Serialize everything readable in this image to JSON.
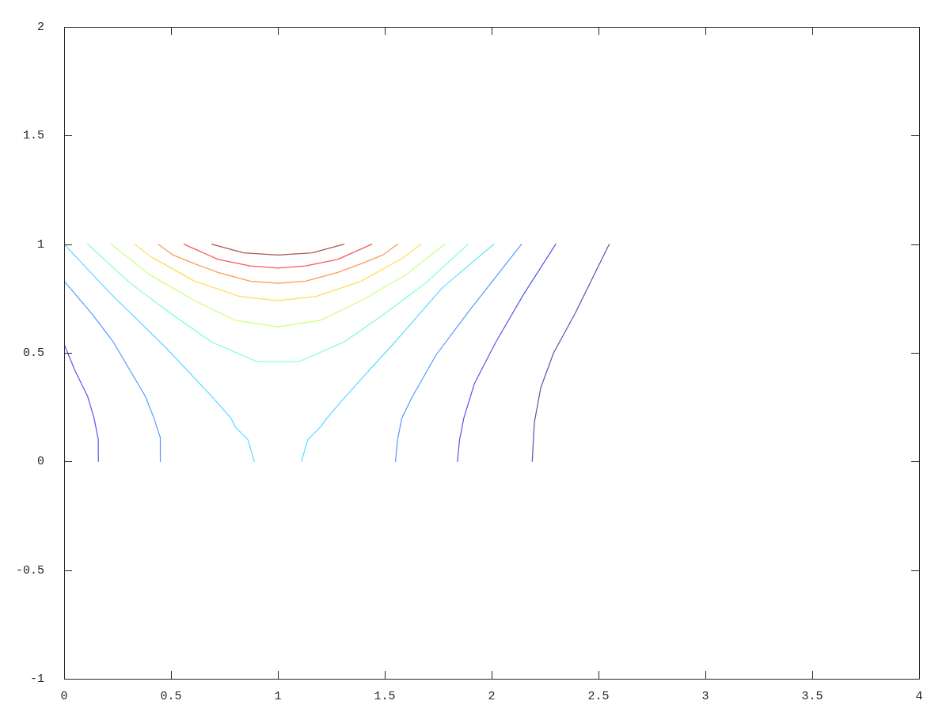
{
  "chart_data": {
    "type": "line",
    "line_style": "solid",
    "xlim": [
      0,
      4
    ],
    "xticks": [
      0,
      0.5,
      1,
      1.5,
      2,
      2.5,
      3,
      3.5,
      4
    ],
    "ylim": [
      -1,
      2
    ],
    "yticks": [
      -1,
      -0.5,
      0,
      0.5,
      1,
      1.5,
      2
    ],
    "series": [
      {
        "color": "#5555aa",
        "x": [
          2.19,
          2.2,
          2.23,
          2.29,
          2.39,
          2.55
        ],
        "values": [
          0,
          0.18,
          0.34,
          0.5,
          0.68,
          1
        ]
      },
      {
        "color": "#5555ee",
        "x": [
          0,
          0.05,
          0.11,
          0.14,
          0.16,
          0.16
        ],
        "values": [
          0.54,
          0.42,
          0.3,
          0.2,
          0.1,
          0
        ]
      },
      {
        "color": "#5555ee",
        "x": [
          1.84,
          1.85,
          1.87,
          1.92,
          2.02,
          2.15,
          2.3
        ],
        "values": [
          0,
          0.1,
          0.2,
          0.36,
          0.55,
          0.77,
          1
        ]
      },
      {
        "color": "#5599ff",
        "x": [
          0,
          0.13,
          0.23,
          0.32,
          0.38,
          0.42,
          0.45,
          0.45
        ],
        "values": [
          0.83,
          0.68,
          0.55,
          0.4,
          0.3,
          0.2,
          0.11,
          0
        ]
      },
      {
        "color": "#5599ff",
        "x": [
          1.55,
          1.56,
          1.58,
          1.63,
          1.74,
          1.9,
          2.14
        ],
        "values": [
          0,
          0.1,
          0.2,
          0.3,
          0.49,
          0.7,
          1
        ]
      },
      {
        "color": "#55ddff",
        "x": [
          0,
          0.22,
          0.47,
          0.69,
          0.78,
          0.8,
          0.86,
          0.89
        ],
        "values": [
          1,
          0.77,
          0.53,
          0.3,
          0.2,
          0.16,
          0.1,
          0
        ]
      },
      {
        "color": "#55ddff",
        "x": [
          1.11,
          1.14,
          1.2,
          1.23,
          1.3,
          1.4,
          1.53,
          1.77,
          2.01
        ],
        "values": [
          0,
          0.1,
          0.16,
          0.2,
          0.28,
          0.39,
          0.53,
          0.8,
          1
        ]
      },
      {
        "color": "#77ffcc",
        "x": [
          0.11,
          0.31,
          0.5,
          0.69,
          0.9,
          1,
          1.1,
          1.31,
          1.5,
          1.69,
          1.89
        ],
        "values": [
          1,
          0.82,
          0.68,
          0.55,
          0.46,
          0.46,
          0.46,
          0.55,
          0.68,
          0.82,
          1
        ]
      },
      {
        "color": "#ccff77",
        "x": [
          0.22,
          0.4,
          0.61,
          0.8,
          1,
          1.2,
          1.39,
          1.6,
          1.78
        ],
        "values": [
          1,
          0.86,
          0.74,
          0.65,
          0.62,
          0.65,
          0.74,
          0.86,
          1
        ]
      },
      {
        "color": "#ffdd55",
        "x": [
          0.33,
          0.41,
          0.61,
          0.82,
          1,
          1.18,
          1.39,
          1.59,
          1.67
        ],
        "values": [
          1,
          0.94,
          0.83,
          0.76,
          0.74,
          0.76,
          0.83,
          0.94,
          1
        ]
      },
      {
        "color": "#ff9955",
        "x": [
          0.44,
          0.51,
          0.61,
          0.72,
          0.87,
          1,
          1.13,
          1.28,
          1.39,
          1.49,
          1.56
        ],
        "values": [
          1,
          0.95,
          0.91,
          0.87,
          0.83,
          0.82,
          0.83,
          0.87,
          0.91,
          0.95,
          1
        ]
      },
      {
        "color": "#ff5555",
        "x": [
          0.56,
          0.72,
          0.87,
          1,
          1.13,
          1.28,
          1.44
        ],
        "values": [
          1,
          0.93,
          0.9,
          0.89,
          0.9,
          0.93,
          1
        ]
      },
      {
        "color": "#aa5555",
        "x": [
          0.69,
          0.84,
          1,
          1.16,
          1.31
        ],
        "values": [
          1,
          0.96,
          0.95,
          0.96,
          1
        ]
      }
    ]
  }
}
